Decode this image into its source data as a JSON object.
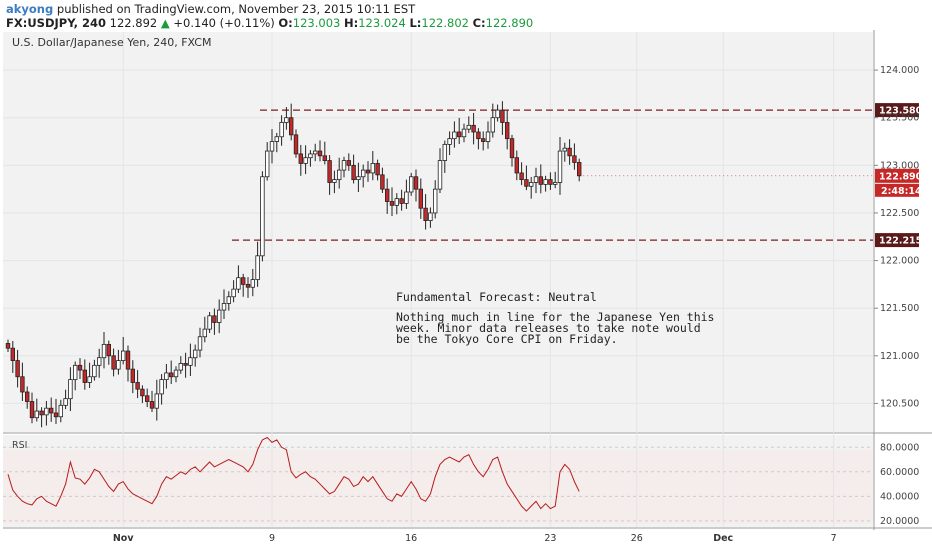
{
  "header": {
    "author": "akyong",
    "published_text": "published on TradingView.com, November 23, 2015 10:11 EST",
    "symbol": "FX:USDJPY, 240",
    "last": "122.892",
    "change": "+0.140 (+0.11%)",
    "o_label": "O:",
    "o_value": "123.003",
    "h_label": "H:",
    "h_value": "123.024",
    "l_label": "L:",
    "l_value": "122.802",
    "c_label": "C:",
    "c_value": "122.890"
  },
  "colors": {
    "up": "#ffffff",
    "down": "#c62828",
    "wick": "#222222",
    "level_line": "#7a1f1f",
    "tag_dark": "#5a1a1a",
    "tag_red": "#c62828",
    "rsi_line": "#b71c1c",
    "grid": "#e4e4e4",
    "panel_bg": "#f2f2f2"
  },
  "chart_data": {
    "type": "candlestick",
    "title": "U.S. Dollar/Japanese Yen, 240, FXCM",
    "y_ticks": [
      "124.000",
      "123.500",
      "123.000",
      "122.500",
      "122.000",
      "121.500",
      "121.000",
      "120.500"
    ],
    "ylim": [
      120.2,
      124.4
    ],
    "x_ticks": [
      "Nov",
      "9",
      "16",
      "23",
      "26",
      "Dec",
      "7"
    ],
    "levels": [
      {
        "label": "123.580",
        "value": 123.58
      },
      {
        "label": "122.215",
        "value": 122.215
      }
    ],
    "current_price_label": "122.890",
    "current_price_value": 122.89,
    "countdown": "2:48:14",
    "closes": [
      121.08,
      120.95,
      120.78,
      120.62,
      120.52,
      120.35,
      120.42,
      120.38,
      120.45,
      120.4,
      120.36,
      120.48,
      120.55,
      120.75,
      120.9,
      120.85,
      120.72,
      120.78,
      120.9,
      120.98,
      121.12,
      121.0,
      120.86,
      120.95,
      121.05,
      120.86,
      120.72,
      120.65,
      120.58,
      120.52,
      120.45,
      120.6,
      120.75,
      120.82,
      120.78,
      120.85,
      120.92,
      120.9,
      120.98,
      121.06,
      121.2,
      121.28,
      121.42,
      121.35,
      121.48,
      121.55,
      121.62,
      121.7,
      121.82,
      121.75,
      121.72,
      121.8,
      122.05,
      122.88,
      123.15,
      123.25,
      123.3,
      123.45,
      123.5,
      123.32,
      123.12,
      123.02,
      123.08,
      123.12,
      123.15,
      123.1,
      123.05,
      122.82,
      122.85,
      122.95,
      123.05,
      123.0,
      122.85,
      122.88,
      122.95,
      122.92,
      123.02,
      122.9,
      122.75,
      122.62,
      122.58,
      122.65,
      122.6,
      122.72,
      122.88,
      122.75,
      122.55,
      122.42,
      122.5,
      122.75,
      123.05,
      123.22,
      123.28,
      123.35,
      123.3,
      123.38,
      123.42,
      123.35,
      123.28,
      123.25,
      123.35,
      123.5,
      123.58,
      123.45,
      123.28,
      123.08,
      122.92,
      122.85,
      122.78,
      122.82,
      122.88,
      122.8,
      122.85,
      122.8,
      122.82,
      123.15,
      123.18,
      123.1,
      123.03,
      122.89
    ],
    "rsi": {
      "label": "RSI",
      "y_ticks": [
        "80.0000",
        "60.0000",
        "40.0000",
        "20.0000"
      ],
      "ylim": [
        15,
        90
      ],
      "values": [
        58,
        45,
        40,
        36,
        34,
        33,
        38,
        40,
        36,
        34,
        32,
        40,
        50,
        68,
        55,
        54,
        50,
        55,
        62,
        60,
        54,
        48,
        44,
        50,
        52,
        46,
        42,
        40,
        38,
        36,
        34,
        40,
        50,
        56,
        54,
        57,
        60,
        58,
        62,
        64,
        60,
        64,
        68,
        64,
        66,
        68,
        70,
        68,
        66,
        64,
        60,
        66,
        78,
        86,
        88,
        84,
        86,
        80,
        78,
        60,
        55,
        58,
        60,
        56,
        54,
        50,
        46,
        42,
        44,
        50,
        56,
        54,
        48,
        50,
        56,
        52,
        56,
        50,
        44,
        38,
        36,
        42,
        40,
        46,
        52,
        46,
        38,
        36,
        42,
        56,
        66,
        70,
        72,
        70,
        68,
        72,
        74,
        66,
        60,
        56,
        62,
        70,
        72,
        60,
        50,
        44,
        38,
        32,
        28,
        32,
        36,
        30,
        34,
        30,
        32,
        60,
        66,
        62,
        52,
        44
      ]
    },
    "annotation": {
      "heading": "Fundamental Forecast: Neutral",
      "lines": [
        "Nothing much in line for the Japanese Yen this",
        "week. Minor data releases to take note would",
        "be the Tokyo Core CPI on Friday."
      ]
    }
  }
}
